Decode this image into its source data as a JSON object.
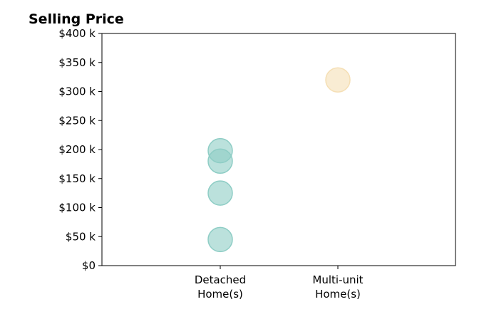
{
  "chart_data": {
    "type": "scatter",
    "title": "Selling Price",
    "xlabel": "",
    "ylabel": "",
    "categories": [
      "Detached\nHome(s)",
      "Multi-unit\nHome(s)"
    ],
    "ylim": [
      0,
      400
    ],
    "yticks": [
      {
        "value": 0,
        "label": "$0"
      },
      {
        "value": 50,
        "label": "$50 k"
      },
      {
        "value": 100,
        "label": "$100 k"
      },
      {
        "value": 150,
        "label": "$150 k"
      },
      {
        "value": 200,
        "label": "$200 k"
      },
      {
        "value": 250,
        "label": "$250 k"
      },
      {
        "value": 300,
        "label": "$300 k"
      },
      {
        "value": 350,
        "label": "$350 k"
      },
      {
        "value": 400,
        "label": "$400 k"
      }
    ],
    "grid": false,
    "series": [
      {
        "category": "Detached\nHome(s)",
        "values": [
          45,
          125,
          180,
          198
        ],
        "color": "#8ecdc5"
      },
      {
        "category": "Multi-unit\nHome(s)",
        "values": [
          320
        ],
        "color": "#f5dfb5"
      }
    ]
  }
}
